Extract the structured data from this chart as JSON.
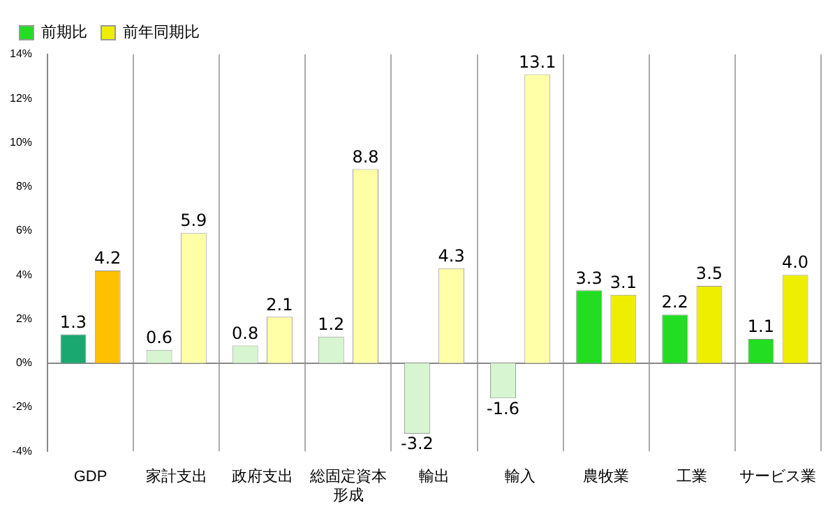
{
  "chart_data": {
    "type": "bar",
    "categories": [
      "GDP",
      "家計支出",
      "政府支出",
      "総固定資本形成",
      "輸出",
      "輸入",
      "農牧業",
      "工業",
      "サービス業"
    ],
    "series": [
      {
        "name": "前期比",
        "color": "#22dd22",
        "colors": [
          "#1aa870",
          "#d6f5d0",
          "#d6f5d0",
          "#d6f5d0",
          "#d6f5d0",
          "#d6f5d0",
          "#22dd22",
          "#22dd22",
          "#22dd22"
        ],
        "values": [
          1.3,
          0.6,
          0.8,
          1.2,
          -3.2,
          -1.6,
          3.3,
          2.2,
          1.1
        ],
        "value_labels": [
          "1.3",
          "0.6",
          "0.8",
          "1.2",
          "-3.2",
          "-1.6",
          "3.3",
          "2.2",
          "1.1"
        ]
      },
      {
        "name": "前年同期比",
        "color": "#eeee00",
        "colors": [
          "#ffc000",
          "#ffffa8",
          "#ffffa8",
          "#ffffa8",
          "#ffffa8",
          "#ffffa8",
          "#eeee00",
          "#eeee00",
          "#eeee00"
        ],
        "values": [
          4.2,
          5.9,
          2.1,
          8.8,
          4.3,
          13.1,
          3.1,
          3.5,
          4.0
        ],
        "value_labels": [
          "4.2",
          "5.9",
          "2.1",
          "8.8",
          "4.3",
          "13.1",
          "3.1",
          "3.5",
          "4.0"
        ]
      }
    ],
    "ylim": [
      -4,
      14
    ],
    "yticks": [
      {
        "value": -4,
        "label": "-4%"
      },
      {
        "value": -2,
        "label": "-2%"
      },
      {
        "value": 0,
        "label": "0%"
      },
      {
        "value": 2,
        "label": "2%"
      },
      {
        "value": 4,
        "label": "4%"
      },
      {
        "value": 6,
        "label": "6%"
      },
      {
        "value": 8,
        "label": "8%"
      },
      {
        "value": 10,
        "label": "10%"
      },
      {
        "value": 12,
        "label": "12%"
      },
      {
        "value": 14,
        "label": "14%"
      }
    ],
    "grid": "x",
    "legend": "top left"
  }
}
